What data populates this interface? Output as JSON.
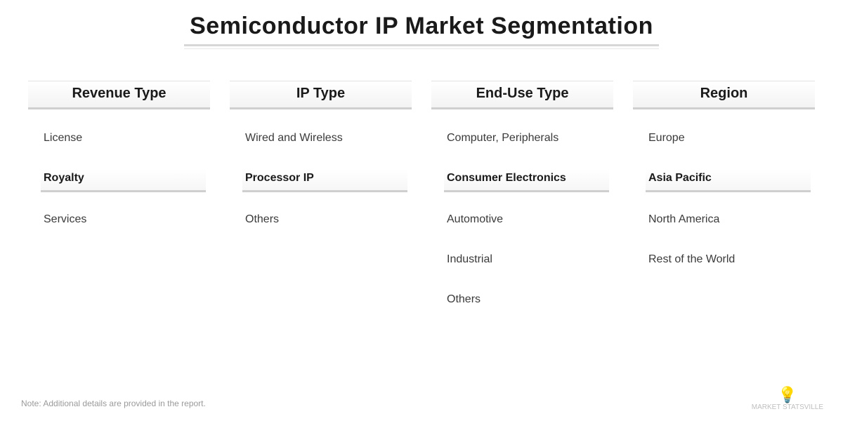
{
  "type": "infographic",
  "title": "Semiconductor IP Market Segmentation",
  "title_fontsize": 34,
  "background_color": "#ffffff",
  "header_underline_color": "#cfcfcf",
  "item_text_color": "#3a3a3a",
  "highlight_text_color": "#1a1a1a",
  "columns": [
    {
      "header": "Revenue Type",
      "items": [
        {
          "label": "License",
          "highlight": false
        },
        {
          "label": "Royalty",
          "highlight": true
        },
        {
          "label": "Services",
          "highlight": false
        }
      ]
    },
    {
      "header": "IP Type",
      "items": [
        {
          "label": "Wired and Wireless",
          "highlight": false
        },
        {
          "label": "Processor IP",
          "highlight": true
        },
        {
          "label": "Others",
          "highlight": false
        }
      ]
    },
    {
      "header": "End-Use Type",
      "items": [
        {
          "label": "Computer, Peripherals",
          "highlight": false
        },
        {
          "label": "Consumer Electronics",
          "highlight": true
        },
        {
          "label": "Automotive",
          "highlight": false
        },
        {
          "label": "Industrial",
          "highlight": false
        },
        {
          "label": "Others",
          "highlight": false
        }
      ]
    },
    {
      "header": "Region",
      "items": [
        {
          "label": "Europe",
          "highlight": false
        },
        {
          "label": "Asia Pacific",
          "highlight": true
        },
        {
          "label": "North America",
          "highlight": false
        },
        {
          "label": "Rest of the World",
          "highlight": false
        }
      ]
    }
  ],
  "footer_note": "Note: Additional details are provided in the report.",
  "logo_text": "MARKET STATSVILLE",
  "logo_icon": "bulb-icon"
}
